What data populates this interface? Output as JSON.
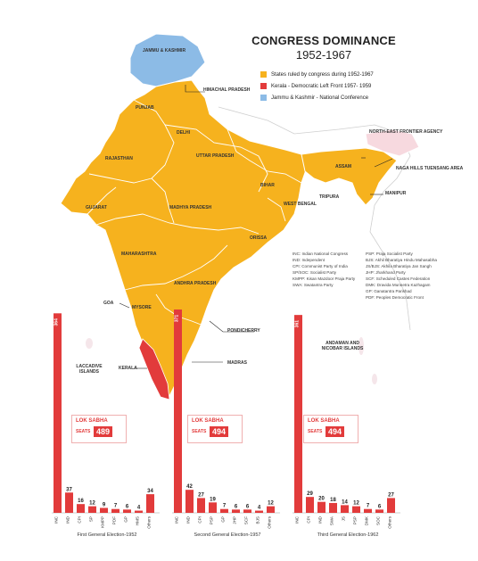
{
  "header": {
    "title": "CONGRESS DOMINANCE",
    "subtitle": "1952-1967"
  },
  "legend": [
    {
      "label": "States ruled by congress during 1952-1967",
      "color": "#f6b21e"
    },
    {
      "label": "Kerala - Democratic Left Front 1957- 1959",
      "color": "#e23b3b"
    },
    {
      "label": "Jammu & Kashmir - National Conference",
      "color": "#8cbbe6"
    }
  ],
  "abbreviations": {
    "left": [
      "INC: Indian National Congress",
      "IND: Independent",
      "CPI: Communist Party of India",
      "SP/SOC: Socialist Party",
      "KMPP: Kisan Mazdoor Praja Party",
      "SWA: Swatantra Party"
    ],
    "right": [
      "PSP: Praja Socialist Party",
      "BJS: Akhil Bharatiya Hindu Mahasabha",
      "JS/BJS: Akhila Bharatiya Jan Sangh",
      "JHP: Jharkhand Party",
      "SCF: Scheduled Castes Federation",
      "DMK: Dravida Munnetra Kazhagam",
      "GP: Ganatantra Parishad",
      "PDF: Peoples Democratic Front"
    ]
  },
  "map_labels": {
    "jk": "JAMMU & KASHMIR",
    "hp": "HIMACHAL PRADESH",
    "punjab": "PUNJAB",
    "delhi": "DELHI",
    "up": "UTTAR PRADESH",
    "raj": "RAJASTHAN",
    "bihar": "BIHAR",
    "nefa": "NORTH-EAST FRONTIER AGENCY",
    "assam": "ASSAM",
    "naga": "NAGA HILLS TUENSANG AREA",
    "manipur": "MANIPUR",
    "tripura": "TRIPURA",
    "wb": "WEST BENGAL",
    "guj": "GUJARAT",
    "mp": "MADHYA PRADESH",
    "orissa": "ORISSA",
    "maha": "MAHARASHTRA",
    "ap": "ANDHRA PRADESH",
    "goa": "GOA",
    "mysore": "MYSORE",
    "pondy": "PONDICHERRY",
    "madras": "MADRAS",
    "kerala": "KERALA",
    "lakshadweep": "LACCADIVE ISLANDS",
    "andaman": "ANDAMAN AND NICOBAR ISLANDS"
  },
  "lok_sabha": {
    "heading": "LOK SABHA",
    "seats_label": "SEATS"
  },
  "elections": [
    {
      "name": "First General Election-1952",
      "total": "489",
      "parties": [
        "INC",
        "IND",
        "CPI",
        "SP",
        "KMPP",
        "PDF",
        "GP",
        "HMS",
        "Others"
      ],
      "seats": [
        364,
        37,
        16,
        12,
        9,
        7,
        6,
        4,
        34
      ]
    },
    {
      "name": "Second General Election-1957",
      "total": "494",
      "parties": [
        "INC",
        "IND",
        "CPI",
        "PSP",
        "GP",
        "JHP",
        "SCF",
        "BJS",
        "Others"
      ],
      "seats": [
        371,
        42,
        27,
        19,
        7,
        6,
        6,
        4,
        12
      ]
    },
    {
      "name": "Third General Election-1962",
      "total": "494",
      "parties": [
        "INC",
        "CPI",
        "IND",
        "SWA",
        "JS",
        "PSP",
        "DMK",
        "SOC",
        "Others"
      ],
      "seats": [
        361,
        29,
        20,
        18,
        14,
        12,
        7,
        6,
        27
      ]
    }
  ],
  "chart_data": [
    {
      "type": "bar",
      "title": "First General Election-1952",
      "categories": [
        "INC",
        "IND",
        "CPI",
        "SP",
        "KMPP",
        "PDF",
        "GP",
        "HMS",
        "Others"
      ],
      "values": [
        364,
        37,
        16,
        12,
        9,
        7,
        6,
        4,
        34
      ]
    },
    {
      "type": "bar",
      "title": "Second General Election-1957",
      "categories": [
        "INC",
        "IND",
        "CPI",
        "PSP",
        "GP",
        "JHP",
        "SCF",
        "BJS",
        "Others"
      ],
      "values": [
        371,
        42,
        27,
        19,
        7,
        6,
        6,
        4,
        12
      ]
    },
    {
      "type": "bar",
      "title": "Third General Election-1962",
      "categories": [
        "INC",
        "CPI",
        "IND",
        "SWA",
        "JS",
        "PSP",
        "DMK",
        "SOC",
        "Others"
      ],
      "values": [
        361,
        29,
        20,
        18,
        14,
        12,
        7,
        6,
        27
      ]
    }
  ]
}
